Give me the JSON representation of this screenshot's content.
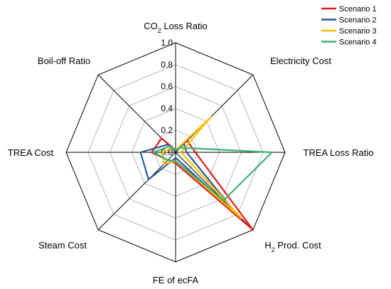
{
  "chart_data": {
    "type": "radar",
    "title": "",
    "axes": [
      {
        "label": "CO",
        "sub": "2",
        "suffix": " Loss Ratio"
      },
      {
        "label": "Electricity Cost",
        "sub": "",
        "suffix": ""
      },
      {
        "label": "TREA Loss Ratio",
        "sub": "",
        "suffix": ""
      },
      {
        "label": "H",
        "sub": "2",
        "suffix": " Prod. Cost"
      },
      {
        "label": "FE of ecFA",
        "sub": "",
        "suffix": ""
      },
      {
        "label": "Steam Cost",
        "sub": "",
        "suffix": ""
      },
      {
        "label": "TREA Cost",
        "sub": "",
        "suffix": ""
      },
      {
        "label": "Boil-off Ratio",
        "sub": "",
        "suffix": ""
      }
    ],
    "rlim": [
      0,
      1.0
    ],
    "ticks": [
      "0.0",
      "0.2",
      "0.4",
      "0.6",
      "0.8",
      "1.0"
    ],
    "tick_values": [
      0,
      0.2,
      0.4,
      0.6,
      0.8,
      1.0
    ],
    "grid": true,
    "legend_position": "top-right",
    "series": [
      {
        "name": "Scenario 1",
        "color": "#e31a1c",
        "values": [
          0.02,
          0.15,
          0.18,
          1.0,
          0.1,
          0.1,
          0.22,
          0.18
        ]
      },
      {
        "name": "Scenario 2",
        "color": "#2b5797",
        "values": [
          0.02,
          0.11,
          0.1,
          0.76,
          0.05,
          0.35,
          0.32,
          0.1
        ]
      },
      {
        "name": "Scenario 3",
        "color": "#ffc000",
        "values": [
          0.02,
          0.45,
          0.05,
          0.85,
          0.08,
          0.15,
          0.12,
          0.06
        ]
      },
      {
        "name": "Scenario 4",
        "color": "#3cb371",
        "values": [
          0.02,
          0.06,
          0.88,
          0.62,
          0.08,
          0.1,
          0.2,
          0.08
        ]
      }
    ]
  }
}
